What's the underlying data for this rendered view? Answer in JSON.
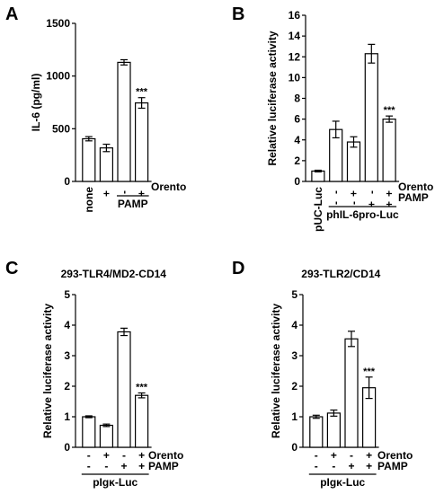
{
  "chart_data": [
    {
      "id": "A",
      "panel_label": "A",
      "type": "bar",
      "title": "",
      "ylabel": "IL-6 (pg/ml)",
      "ylim": [
        0,
        1500
      ],
      "yticks": [
        "0",
        "500",
        "1000",
        "1500"
      ],
      "ytick_values": [
        0,
        500,
        1000,
        1500
      ],
      "values": [
        405,
        318,
        1130,
        745
      ],
      "errors": [
        20,
        35,
        25,
        50
      ],
      "significance": [
        "",
        "",
        "",
        "***"
      ],
      "categories": [
        "none",
        "",
        "",
        ""
      ],
      "rows": [
        {
          "label": "Orento",
          "marks": [
            "",
            "+",
            "-",
            "+"
          ]
        }
      ],
      "groups": [
        {
          "label": "PAMP",
          "from": 2,
          "to": 3
        }
      ]
    },
    {
      "id": "B",
      "panel_label": "B",
      "type": "bar",
      "title": "",
      "ylabel": "Relative luciferase activity",
      "ylim": [
        0,
        16
      ],
      "yticks": [
        "0",
        "2",
        "4",
        "6",
        "8",
        "10",
        "12",
        "14",
        "16"
      ],
      "ytick_values": [
        0,
        2,
        4,
        6,
        8,
        10,
        12,
        14,
        16
      ],
      "values": [
        1.0,
        5.0,
        3.8,
        12.3,
        6.0
      ],
      "errors": [
        0.08,
        0.8,
        0.5,
        0.9,
        0.3
      ],
      "significance": [
        "",
        "",
        "",
        "",
        "***"
      ],
      "categories": [
        "pUC-Luc",
        "",
        "",
        "",
        ""
      ],
      "rows": [
        {
          "label": "Orento",
          "marks": [
            "",
            "-",
            "+",
            "-",
            "+"
          ]
        },
        {
          "label": "PAMP",
          "marks": [
            "",
            "-",
            "-",
            "+",
            "+"
          ]
        }
      ],
      "groups": [
        {
          "label": "phIL-6pro-Luc",
          "from": 1,
          "to": 4
        }
      ]
    },
    {
      "id": "C",
      "panel_label": "C",
      "type": "bar",
      "title": "293-TLR4/MD2-CD14",
      "ylabel": "Relative luciferase activity",
      "ylim": [
        0,
        5
      ],
      "yticks": [
        "0",
        "1",
        "2",
        "3",
        "4",
        "5"
      ],
      "ytick_values": [
        0,
        1,
        2,
        3,
        4,
        5
      ],
      "values": [
        1.0,
        0.72,
        3.78,
        1.7
      ],
      "errors": [
        0.03,
        0.04,
        0.12,
        0.08
      ],
      "significance": [
        "",
        "",
        "",
        "***"
      ],
      "categories": [
        "",
        "",
        "",
        ""
      ],
      "rows": [
        {
          "label": "Orento",
          "marks": [
            "-",
            "+",
            "-",
            "+"
          ]
        },
        {
          "label": "PAMP",
          "marks": [
            "-",
            "-",
            "+",
            "+"
          ]
        }
      ],
      "groups": [
        {
          "label": "pIgκ-Luc",
          "from": 0,
          "to": 3
        }
      ]
    },
    {
      "id": "D",
      "panel_label": "D",
      "type": "bar",
      "title": "293-TLR2/CD14",
      "ylabel": "Relative luciferase activity",
      "ylim": [
        0,
        5
      ],
      "yticks": [
        "0",
        "1",
        "2",
        "3",
        "4",
        "5"
      ],
      "ytick_values": [
        0,
        1,
        2,
        3,
        4,
        5
      ],
      "values": [
        1.0,
        1.12,
        3.55,
        1.95
      ],
      "errors": [
        0.05,
        0.1,
        0.25,
        0.35
      ],
      "significance": [
        "",
        "",
        "",
        "***"
      ],
      "categories": [
        "",
        "",
        "",
        ""
      ],
      "rows": [
        {
          "label": "Orento",
          "marks": [
            "-",
            "+",
            "-",
            "+"
          ]
        },
        {
          "label": "PAMP",
          "marks": [
            "-",
            "-",
            "+",
            "+"
          ]
        }
      ],
      "groups": [
        {
          "label": "pIgκ-Luc",
          "from": 0,
          "to": 3
        }
      ]
    }
  ]
}
